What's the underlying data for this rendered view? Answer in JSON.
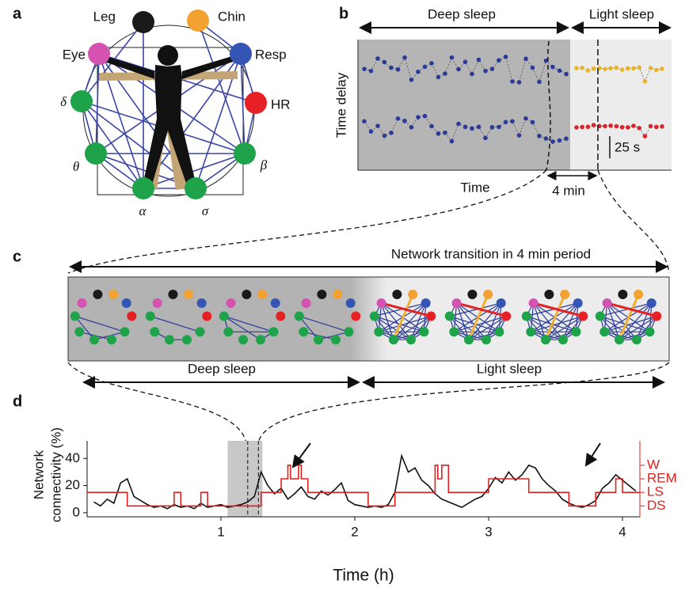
{
  "panel_a": {
    "label": "a",
    "nodes": [
      {
        "label": "Leg",
        "color": "#1a1a1a"
      },
      {
        "label": "Chin",
        "color": "#f3a130"
      },
      {
        "label": "Eye",
        "color": "#d452b0"
      },
      {
        "label": "Resp",
        "color": "#3455b4"
      },
      {
        "label": "δ",
        "color": "#1fa34a"
      },
      {
        "label": "HR",
        "color": "#e52125"
      },
      {
        "label": "θ",
        "color": "#1fa34a"
      },
      {
        "label": "β",
        "color": "#1fa34a"
      },
      {
        "label": "α",
        "color": "#1fa34a"
      },
      {
        "label": "σ",
        "color": "#1fa34a"
      }
    ]
  },
  "panel_b": {
    "label": "b",
    "deep": "Deep sleep",
    "light": "Light sleep",
    "ylabel": "Time delay",
    "xlabel": "Time",
    "interval": "4 min",
    "scale": "25 s"
  },
  "panel_c": {
    "label": "c",
    "title": "Network transition in 4 min period",
    "deep": "Deep sleep",
    "light": "Light sleep"
  },
  "chart_data": {
    "type": "line",
    "label": "d",
    "ylabel": [
      "Network",
      "connectivity (%)"
    ],
    "xlabel": "Time (h)",
    "x": [
      0.05,
      0.1,
      0.15,
      0.2,
      0.25,
      0.3,
      0.35,
      0.4,
      0.45,
      0.5,
      0.55,
      0.6,
      0.65,
      0.7,
      0.75,
      0.8,
      0.85,
      0.9,
      0.95,
      1.0,
      1.05,
      1.1,
      1.15,
      1.2,
      1.25,
      1.3,
      1.35,
      1.4,
      1.45,
      1.5,
      1.55,
      1.6,
      1.65,
      1.7,
      1.75,
      1.8,
      1.85,
      1.9,
      1.95,
      2.0,
      2.05,
      2.1,
      2.15,
      2.2,
      2.25,
      2.3,
      2.35,
      2.4,
      2.45,
      2.5,
      2.55,
      2.6,
      2.65,
      2.7,
      2.75,
      2.8,
      2.85,
      2.9,
      2.95,
      3.0,
      3.05,
      3.1,
      3.15,
      3.2,
      3.25,
      3.3,
      3.35,
      3.4,
      3.45,
      3.5,
      3.55,
      3.6,
      3.65,
      3.7,
      3.75,
      3.8,
      3.85,
      3.9,
      3.95,
      4.0,
      4.05,
      4.1
    ],
    "series": [
      {
        "color": "#111111",
        "values": [
          8,
          5,
          10,
          7,
          22,
          25,
          12,
          9,
          6,
          4,
          5,
          3,
          6,
          4,
          5,
          3,
          7,
          4,
          5,
          6,
          4,
          5,
          6,
          8,
          12,
          30,
          20,
          14,
          18,
          10,
          14,
          19,
          12,
          10,
          16,
          13,
          17,
          22,
          9,
          6,
          5,
          4,
          5,
          4,
          6,
          15,
          42,
          30,
          33,
          24,
          20,
          14,
          10,
          8,
          6,
          4,
          7,
          10,
          12,
          18,
          26,
          22,
          30,
          24,
          28,
          35,
          33,
          25,
          20,
          16,
          10,
          7,
          5,
          4,
          6,
          9,
          18,
          22,
          28,
          24,
          20,
          16
        ]
      },
      {
        "color": "#e0201e",
        "axis": "y2",
        "x": [
          0,
          0.3,
          0.65,
          0.7,
          0.85,
          0.9,
          1.3,
          1.45,
          1.5,
          1.52,
          1.58,
          1.6,
          1.65,
          2.1,
          2.3,
          2.6,
          2.62,
          2.65,
          2.7,
          3.0,
          3.3,
          3.6,
          3.8,
          3.95,
          4.0,
          4.13
        ],
        "values": [
          15,
          5,
          15,
          5,
          15,
          5,
          15,
          25,
          35,
          25,
          35,
          25,
          15,
          5,
          15,
          35,
          25,
          35,
          15,
          25,
          15,
          5,
          15,
          25,
          15,
          15
        ]
      }
    ],
    "xlim": [
      0,
      4.13
    ],
    "xticks": [
      1,
      2,
      3,
      4
    ],
    "ylim": [
      -3,
      53
    ],
    "yticks": [
      0,
      20,
      40
    ],
    "y2lim": [
      -3,
      53
    ],
    "y2ticks": [
      {
        "value": 35,
        "label": "W"
      },
      {
        "value": 25,
        "label": "REM"
      },
      {
        "value": 15,
        "label": "LS"
      },
      {
        "value": 5,
        "label": "DS"
      }
    ],
    "highlight": [
      1.05,
      1.31
    ],
    "markers": [
      1.2,
      1.28
    ]
  }
}
